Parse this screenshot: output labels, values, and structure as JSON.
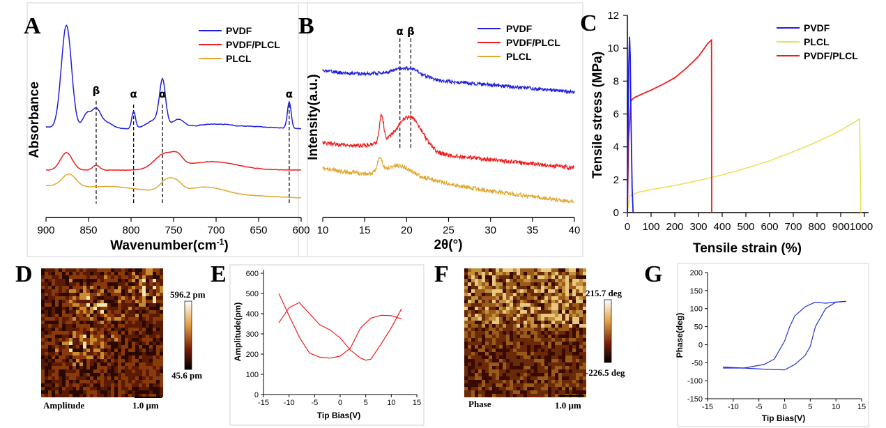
{
  "colors": {
    "pvdf": "#1f1fe0",
    "pvdf_plcl": "#ee1c1c",
    "plcl_a": "#e0a830",
    "plcl_c": "#e8e050",
    "pfm": "#ee1c1c",
    "pfm_g": "#2233cc"
  },
  "panels": {
    "a": "A",
    "b": "B",
    "c": "C",
    "d": "D",
    "e": "E",
    "f": "F",
    "g": "G"
  },
  "panelA": {
    "xlabel_main": "Wavenumber(cm",
    "xlabel_sup": "-1",
    "xlabel_end": ")",
    "ylabel": "Absorbance",
    "xticks": [
      "900",
      "850",
      "800",
      "750",
      "700",
      "650",
      "600"
    ],
    "legend": [
      "PVDF",
      "PVDF/PLCL",
      "PLCL"
    ],
    "markers": [
      {
        "wn": 841,
        "label": "β"
      },
      {
        "wn": 797,
        "label": "α"
      },
      {
        "wn": 763,
        "label": "α"
      },
      {
        "wn": 614,
        "label": "α"
      }
    ]
  },
  "panelB": {
    "xlabel": "2θ(°)",
    "ylabel": "Intensity(a.u.)",
    "xticks": [
      "10",
      "15",
      "20",
      "25",
      "30",
      "35",
      "40"
    ],
    "legend": [
      "PVDF",
      "PVDF/PLCL",
      "PLCL"
    ],
    "markers": [
      {
        "x": 19.2,
        "label": "α"
      },
      {
        "x": 20.5,
        "label": "β"
      }
    ]
  },
  "panelC": {
    "xlabel": "Tensile strain (%)",
    "ylabel": "Tensile stress (MPa)",
    "xticks": [
      "0",
      "100",
      "200",
      "300",
      "400",
      "500",
      "600",
      "700",
      "800",
      "9001000"
    ],
    "yticks": [
      "0",
      "2",
      "4",
      "6",
      "8",
      "10",
      "12"
    ],
    "legend": [
      "PVDF",
      "PLCL",
      "PVDF/PLCL"
    ]
  },
  "panelD": {
    "label": "Amplitude",
    "scalebar": "1.0 μm",
    "max": "596.2 pm",
    "min": "45.6 pm"
  },
  "panelE": {
    "xlabel": "Tip Bias(V)",
    "ylabel": "Amplitude(pm)",
    "xticks": [
      "-15",
      "-10",
      "-5",
      "0",
      "5",
      "10",
      "15"
    ],
    "yticks": [
      "0",
      "100",
      "200",
      "300",
      "400",
      "500",
      "600"
    ]
  },
  "panelF": {
    "label": "Phase",
    "scalebar": "1.0 μm",
    "max": "215.7 deg",
    "min": "-226.5 deg"
  },
  "panelG": {
    "xlabel": "Tip Bias(V)",
    "ylabel": "Phase(deg)",
    "xticks": [
      "-15",
      "-10",
      "-5",
      "0",
      "5",
      "10",
      "15"
    ],
    "yticks": [
      "200",
      "150",
      "100",
      "50",
      "0",
      "-50",
      "-100",
      "-150"
    ]
  },
  "chart_data": [
    {
      "type": "line",
      "panel": "A",
      "xlabel": "Wavenumber(cm-1)",
      "ylabel": "Absorbance",
      "xlim": [
        900,
        600
      ],
      "series": [
        {
          "name": "PVDF",
          "peaks_wavenumber": [
            876,
            841,
            797,
            763,
            614
          ]
        },
        {
          "name": "PVDF/PLCL",
          "peaks_wavenumber": [
            876,
            841,
            760
          ]
        },
        {
          "name": "PLCL",
          "peaks_wavenumber": [
            873,
            757,
            710
          ]
        }
      ]
    },
    {
      "type": "line",
      "panel": "B",
      "xlabel": "2θ(°)",
      "ylabel": "Intensity(a.u.)",
      "xlim": [
        10,
        40
      ],
      "series": [
        {
          "name": "PVDF",
          "peaks_2theta": [
            20.5
          ]
        },
        {
          "name": "PVDF/PLCL",
          "peaks_2theta": [
            17.0,
            20.5
          ]
        },
        {
          "name": "PLCL",
          "peaks_2theta": [
            16.8,
            19.0
          ]
        }
      ]
    },
    {
      "type": "line",
      "panel": "C",
      "xlabel": "Tensile strain (%)",
      "ylabel": "Tensile stress (MPa)",
      "xlim": [
        0,
        1000
      ],
      "ylim": [
        0,
        12
      ],
      "series": [
        {
          "name": "PVDF",
          "x": [
            0,
            3,
            6,
            9,
            12,
            15,
            20,
            24
          ],
          "y": [
            0,
            5.0,
            9.0,
            10.7,
            9.5,
            6.0,
            1.5,
            0
          ]
        },
        {
          "name": "PLCL",
          "x": [
            0,
            10,
            20,
            50,
            100,
            200,
            300,
            400,
            500,
            600,
            700,
            800,
            900,
            980,
            985
          ],
          "y": [
            0,
            1.0,
            1.1,
            1.25,
            1.4,
            1.65,
            1.95,
            2.3,
            2.7,
            3.15,
            3.7,
            4.3,
            5.0,
            5.7,
            0
          ]
        },
        {
          "name": "PVDF/PLCL",
          "x": [
            0,
            5,
            15,
            30,
            60,
            100,
            150,
            200,
            250,
            300,
            340,
            355,
            356
          ],
          "y": [
            0,
            4.5,
            6.8,
            7.0,
            7.2,
            7.45,
            7.8,
            8.2,
            8.8,
            9.5,
            10.3,
            10.5,
            0
          ]
        }
      ]
    },
    {
      "type": "line",
      "panel": "E",
      "xlabel": "Tip Bias(V)",
      "ylabel": "Amplitude(pm)",
      "xlim": [
        -15,
        15
      ],
      "ylim": [
        0,
        600
      ],
      "series": [
        {
          "name": "",
          "x": [
            -12,
            -10,
            -8,
            -6,
            -4,
            -2,
            0,
            2,
            4,
            5,
            6,
            8,
            10,
            12
          ],
          "y": [
            355,
            430,
            455,
            400,
            345,
            320,
            280,
            220,
            180,
            170,
            175,
            250,
            330,
            425
          ]
        },
        {
          "name": "",
          "x": [
            12,
            10,
            8,
            6,
            4,
            2,
            0,
            -2,
            -4,
            -6,
            -8,
            -10,
            -12
          ],
          "y": [
            375,
            390,
            392,
            378,
            330,
            230,
            190,
            180,
            185,
            205,
            285,
            390,
            500
          ]
        }
      ]
    },
    {
      "type": "line",
      "panel": "G",
      "xlabel": "Tip Bias(V)",
      "ylabel": "Phase(deg)",
      "xlim": [
        -15,
        15
      ],
      "ylim": [
        -150,
        200
      ],
      "series": [
        {
          "name": "",
          "x": [
            -12,
            -8,
            -4,
            -2,
            0,
            1,
            2,
            4,
            6,
            8,
            10,
            12
          ],
          "y": [
            -65,
            -65,
            -55,
            -40,
            10,
            50,
            80,
            105,
            118,
            115,
            118,
            120
          ]
        },
        {
          "name": "",
          "x": [
            12,
            10,
            8,
            6,
            5,
            4,
            2,
            0,
            -4,
            -8,
            -12
          ],
          "y": [
            120,
            118,
            100,
            50,
            -5,
            -30,
            -55,
            -70,
            -68,
            -65,
            -62
          ]
        }
      ]
    }
  ]
}
